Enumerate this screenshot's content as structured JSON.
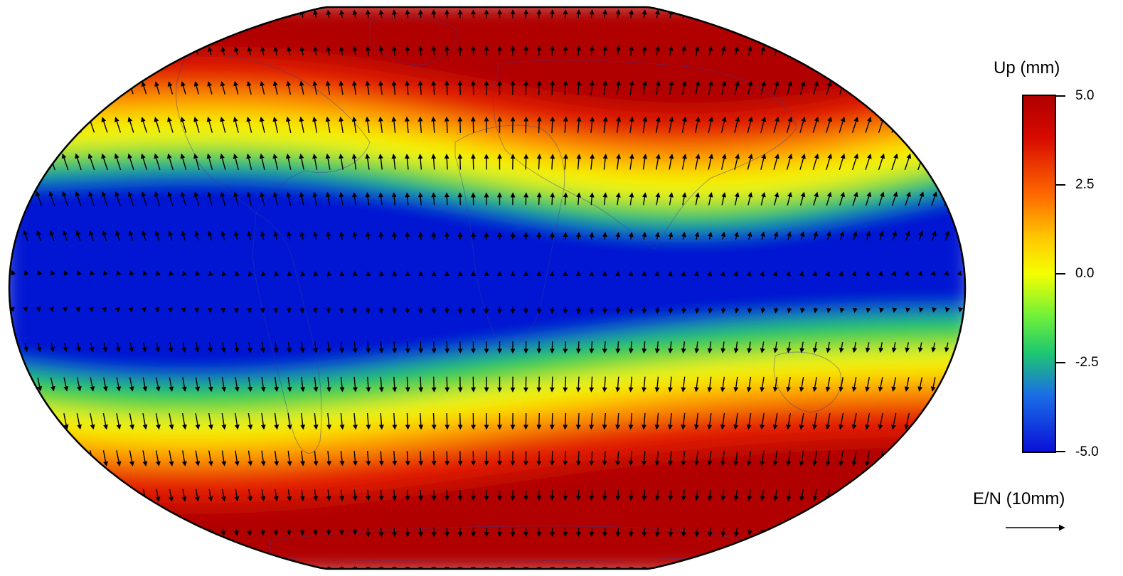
{
  "colorbar": {
    "title": "Up (mm)",
    "ticks": [
      "5.0",
      "2.5",
      "0.0",
      "-2.5",
      "-5.0"
    ],
    "range": [
      -5.0,
      5.0
    ],
    "colors": [
      "#0a0ad4",
      "#1e90ff",
      "#2ed05a",
      "#ffff00",
      "#ff8c00",
      "#e00000",
      "#b40000"
    ]
  },
  "scale": {
    "label": "E/N (10mm)",
    "arrow_length_mm": 10
  },
  "map": {
    "projection": "winkel-tripel-like",
    "field_colors": {
      "high": "#b00000",
      "red": "#e51a00",
      "orange": "#ff9900",
      "yellow": "#f5f500",
      "green": "#2cd04a",
      "low": "#0014d2"
    }
  }
}
